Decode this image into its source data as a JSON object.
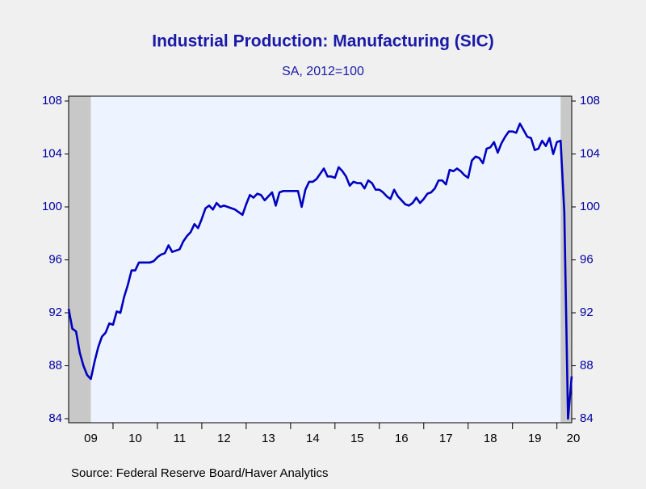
{
  "chart_data": {
    "type": "line",
    "title": "Industrial Production: Manufacturing (SIC)",
    "subtitle": "SA, 2012=100",
    "source": "Source:  Federal Reserve Board/Haver Analytics",
    "color": "#0000c0",
    "shade_color": "#c8c8c8",
    "shading": [
      [
        "2009-01",
        "2009-06"
      ],
      [
        "2020-02",
        "2020-05"
      ]
    ],
    "xlim": [
      "2009-01",
      "2020-05"
    ],
    "xticks": [
      {
        "value": "2009-01",
        "label": "09"
      },
      {
        "value": "2010-01",
        "label": "10"
      },
      {
        "value": "2011-01",
        "label": "11"
      },
      {
        "value": "2012-01",
        "label": "12"
      },
      {
        "value": "2013-01",
        "label": "13"
      },
      {
        "value": "2014-01",
        "label": "14"
      },
      {
        "value": "2015-01",
        "label": "15"
      },
      {
        "value": "2016-01",
        "label": "16"
      },
      {
        "value": "2017-01",
        "label": "17"
      },
      {
        "value": "2018-01",
        "label": "18"
      },
      {
        "value": "2019-01",
        "label": "19"
      },
      {
        "value": "2020-01",
        "label": "20"
      }
    ],
    "ylim": [
      84,
      108
    ],
    "yticks": [
      84,
      88,
      92,
      96,
      100,
      104,
      108
    ],
    "x": [
      "2009-01",
      "2009-02",
      "2009-03",
      "2009-04",
      "2009-05",
      "2009-06",
      "2009-07",
      "2009-08",
      "2009-09",
      "2009-10",
      "2009-11",
      "2009-12",
      "2010-01",
      "2010-02",
      "2010-03",
      "2010-04",
      "2010-05",
      "2010-06",
      "2010-07",
      "2010-08",
      "2010-09",
      "2010-10",
      "2010-11",
      "2010-12",
      "2011-01",
      "2011-02",
      "2011-03",
      "2011-04",
      "2011-05",
      "2011-06",
      "2011-07",
      "2011-08",
      "2011-09",
      "2011-10",
      "2011-11",
      "2011-12",
      "2012-01",
      "2012-02",
      "2012-03",
      "2012-04",
      "2012-05",
      "2012-06",
      "2012-07",
      "2012-08",
      "2012-09",
      "2012-10",
      "2012-11",
      "2012-12",
      "2013-01",
      "2013-02",
      "2013-03",
      "2013-04",
      "2013-05",
      "2013-06",
      "2013-07",
      "2013-08",
      "2013-09",
      "2013-10",
      "2013-11",
      "2013-12",
      "2014-01",
      "2014-02",
      "2014-03",
      "2014-04",
      "2014-05",
      "2014-06",
      "2014-07",
      "2014-08",
      "2014-09",
      "2014-10",
      "2014-11",
      "2014-12",
      "2015-01",
      "2015-02",
      "2015-03",
      "2015-04",
      "2015-05",
      "2015-06",
      "2015-07",
      "2015-08",
      "2015-09",
      "2015-10",
      "2015-11",
      "2015-12",
      "2016-01",
      "2016-02",
      "2016-03",
      "2016-04",
      "2016-05",
      "2016-06",
      "2016-07",
      "2016-08",
      "2016-09",
      "2016-10",
      "2016-11",
      "2016-12",
      "2017-01",
      "2017-02",
      "2017-03",
      "2017-04",
      "2017-05",
      "2017-06",
      "2017-07",
      "2017-08",
      "2017-09",
      "2017-10",
      "2017-11",
      "2017-12",
      "2018-01",
      "2018-02",
      "2018-03",
      "2018-04",
      "2018-05",
      "2018-06",
      "2018-07",
      "2018-08",
      "2018-09",
      "2018-10",
      "2018-11",
      "2018-12",
      "2019-01",
      "2019-02",
      "2019-03",
      "2019-04",
      "2019-05",
      "2019-06",
      "2019-07",
      "2019-08",
      "2019-09",
      "2019-10",
      "2019-11",
      "2019-12",
      "2020-01",
      "2020-02",
      "2020-03",
      "2020-04",
      "2020-05"
    ],
    "values": [
      92.3,
      90.8,
      90.6,
      89.0,
      88.0,
      87.3,
      87.0,
      88.3,
      89.4,
      90.2,
      90.5,
      91.2,
      91.1,
      92.1,
      92.0,
      93.2,
      94.1,
      95.2,
      95.2,
      95.8,
      95.8,
      95.8,
      95.8,
      95.9,
      96.2,
      96.4,
      96.5,
      97.1,
      96.6,
      96.7,
      96.8,
      97.4,
      97.8,
      98.1,
      98.7,
      98.4,
      99.1,
      99.9,
      100.1,
      99.8,
      100.3,
      100.0,
      100.1,
      100.0,
      99.9,
      99.8,
      99.6,
      99.4,
      100.2,
      100.9,
      100.7,
      101.0,
      100.9,
      100.5,
      100.8,
      101.1,
      100.1,
      101.1,
      101.2,
      101.2,
      101.2,
      101.2,
      101.2,
      100.0,
      101.3,
      101.9,
      101.9,
      102.1,
      102.5,
      102.9,
      102.3,
      102.3,
      102.2,
      103.0,
      102.7,
      102.3,
      101.6,
      101.9,
      101.8,
      101.8,
      101.4,
      102.0,
      101.8,
      101.3,
      101.3,
      101.1,
      100.8,
      100.6,
      101.3,
      100.8,
      100.5,
      100.2,
      100.1,
      100.3,
      100.7,
      100.3,
      100.6,
      101.0,
      101.1,
      101.4,
      102.0,
      102.0,
      101.7,
      102.8,
      102.7,
      102.9,
      102.7,
      102.4,
      102.2,
      103.5,
      103.8,
      103.7,
      103.3,
      104.4,
      104.5,
      104.9,
      104.1,
      104.8,
      105.3,
      105.7,
      105.7,
      105.6,
      106.3,
      105.8,
      105.3,
      105.2,
      104.3,
      104.4,
      105.0,
      104.6,
      105.2,
      104.0,
      104.9,
      105.0,
      99.6,
      84.0,
      87.2
    ]
  }
}
